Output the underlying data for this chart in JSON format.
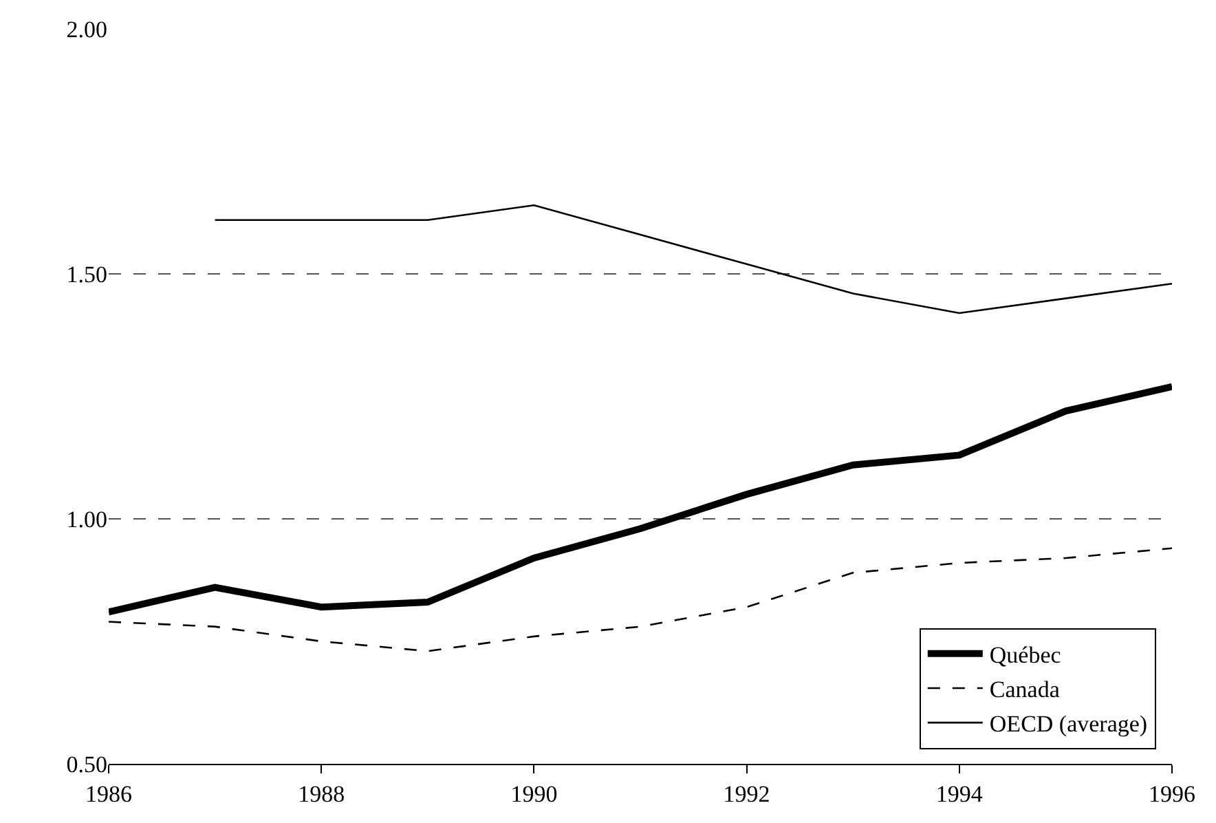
{
  "chart_data": {
    "type": "line",
    "x": [
      1986,
      1987,
      1988,
      1989,
      1990,
      1991,
      1992,
      1993,
      1994,
      1995,
      1996
    ],
    "series": [
      {
        "name": "Québec",
        "color": "#000000",
        "line_style": "solid",
        "values": [
          0.81,
          0.86,
          0.82,
          0.83,
          0.92,
          0.98,
          1.05,
          1.11,
          1.13,
          1.22,
          1.27
        ]
      },
      {
        "name": "Canada",
        "color": "#000000",
        "line_style": "dashed",
        "values": [
          0.79,
          0.78,
          0.75,
          0.73,
          0.76,
          0.78,
          0.82,
          0.89,
          0.91,
          0.92,
          0.94
        ]
      },
      {
        "name": "OECD (average)",
        "color": "#000000",
        "line_style": "solid",
        "values": [
          null,
          1.61,
          1.61,
          1.61,
          1.64,
          1.58,
          1.52,
          1.46,
          1.42,
          1.45,
          1.48
        ]
      }
    ],
    "xlim": [
      1986,
      1996
    ],
    "xticks": [
      1986,
      1988,
      1990,
      1992,
      1994,
      1996
    ],
    "ylim": [
      0.5,
      2.0
    ],
    "yticks": [
      {
        "value": 0.5,
        "label": "0.50"
      },
      {
        "value": 1.0,
        "label": "1.00"
      },
      {
        "value": 1.5,
        "label": "1.50"
      },
      {
        "value": 2.0,
        "label": "2.00"
      }
    ],
    "grid": "y",
    "legend": "bottom right",
    "marker": "none"
  }
}
